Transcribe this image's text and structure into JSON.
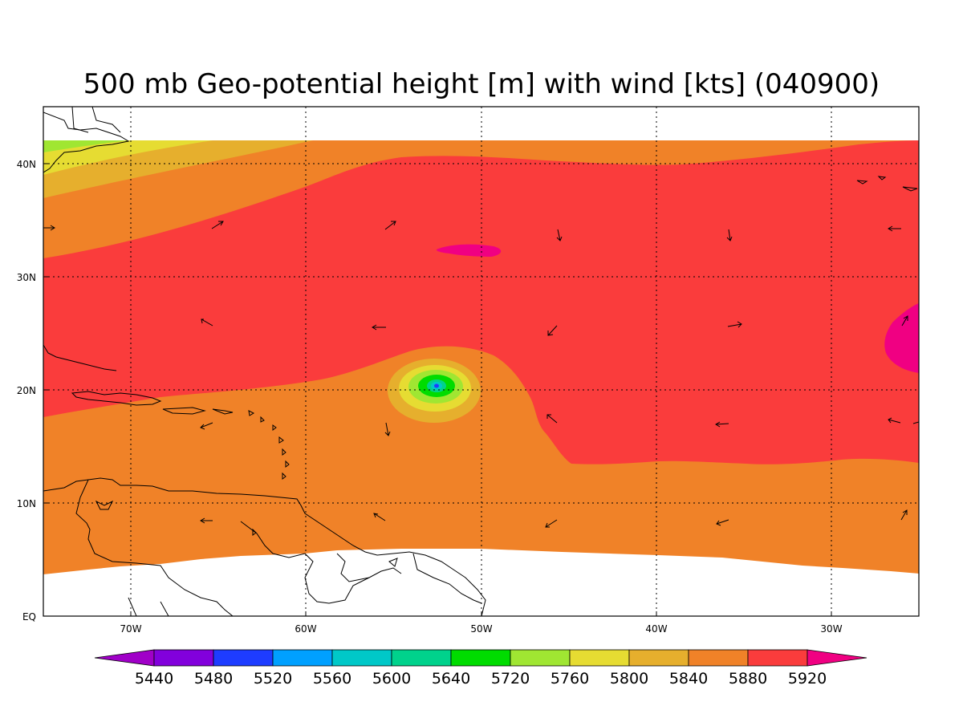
{
  "title": "500 mb Geo-potential height [m] with wind [kts] (040900)",
  "map": {
    "lon_range": [
      -75,
      -25
    ],
    "lat_range": [
      0,
      45
    ],
    "lon_ticks": [
      {
        "value": -70,
        "label": "70W"
      },
      {
        "value": -60,
        "label": "60W"
      },
      {
        "value": -50,
        "label": "50W"
      },
      {
        "value": -40,
        "label": "40W"
      },
      {
        "value": -30,
        "label": "30W"
      }
    ],
    "lat_ticks": [
      {
        "value": 0,
        "label": "EQ"
      },
      {
        "value": 10,
        "label": "10N"
      },
      {
        "value": 20,
        "label": "20N"
      },
      {
        "value": 30,
        "label": "30N"
      },
      {
        "value": 40,
        "label": "40N"
      }
    ],
    "gridlines": "dotted",
    "colors": {
      "ocean_land_nodata": "#ffffff",
      "coastline": "#000000"
    },
    "low_center": {
      "lon": -52.5,
      "lat": 20.3
    }
  },
  "colorbar": {
    "levels": [
      "5440",
      "5480",
      "5520",
      "5560",
      "5600",
      "5640",
      "5720",
      "5760",
      "5800",
      "5840",
      "5880",
      "5920"
    ],
    "colors": [
      "#a000c8",
      "#8200dc",
      "#1e3cff",
      "#00a0ff",
      "#00c8c8",
      "#00d28c",
      "#00dc00",
      "#a0e632",
      "#e6dc32",
      "#e6af2d",
      "#f08228",
      "#fa3c3c",
      "#f00082"
    ]
  }
}
